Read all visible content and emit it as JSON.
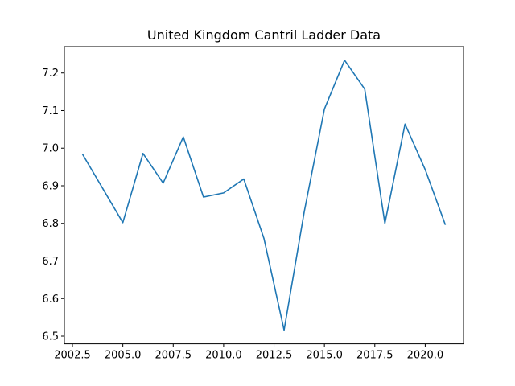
{
  "chart_data": {
    "type": "line",
    "title": "United Kingdom Cantril Ladder Data",
    "xlabel": "",
    "ylabel": "",
    "xlim": [
      2002.1,
      2021.9
    ],
    "ylim": [
      6.4795,
      7.27
    ],
    "grid": false,
    "legend": "none",
    "x_ticks": [
      2002.5,
      2005.0,
      2007.5,
      2010.0,
      2012.5,
      2015.0,
      2017.5,
      2020.0
    ],
    "x_tick_labels": [
      "2002.5",
      "2005.0",
      "2007.5",
      "2010.0",
      "2012.5",
      "2015.0",
      "2017.5",
      "2020.0"
    ],
    "y_ticks": [
      6.5,
      6.6,
      6.7,
      6.8,
      6.9,
      7.0,
      7.1,
      7.2
    ],
    "y_tick_labels": [
      "6.5",
      "6.6",
      "6.7",
      "6.8",
      "6.9",
      "7.0",
      "7.1",
      "7.2"
    ],
    "series": [
      {
        "color": "#1f77b4",
        "x": [
          2003,
          2005,
          2006,
          2007,
          2008,
          2009,
          2010,
          2011,
          2012,
          2013,
          2014,
          2015,
          2016,
          2017,
          2018,
          2019,
          2020,
          2021
        ],
        "y": [
          6.984,
          6.802,
          6.986,
          6.907,
          7.03,
          6.87,
          6.881,
          6.918,
          6.76,
          6.516,
          6.831,
          7.104,
          7.234,
          7.157,
          6.8,
          7.064,
          6.943,
          6.796
        ]
      }
    ]
  }
}
